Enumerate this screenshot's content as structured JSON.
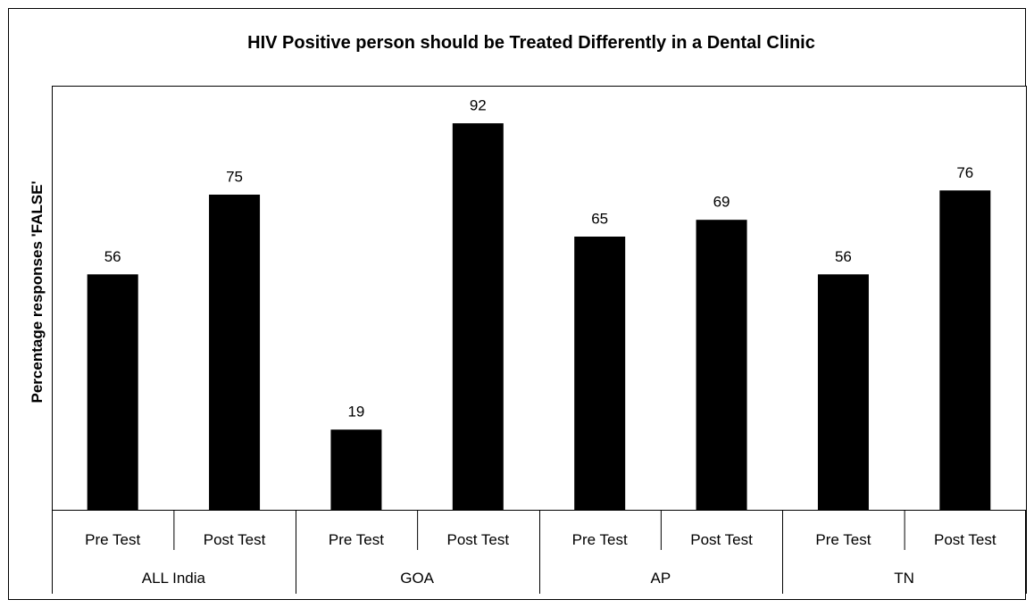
{
  "chart_data": {
    "type": "bar",
    "title": "HIV Positive person should be Treated Differently in a Dental Clinic",
    "ylabel": "Percentage responses 'FALSE'",
    "xlabel": "",
    "ylim": [
      0,
      100
    ],
    "grid": false,
    "legend": "none",
    "bar_color": "#000000",
    "groups": [
      {
        "name": "ALL India",
        "categories": [
          "Pre Test",
          "Post Test"
        ],
        "values": [
          56,
          75
        ]
      },
      {
        "name": "GOA",
        "categories": [
          "Pre Test",
          "Post Test"
        ],
        "values": [
          19,
          92
        ]
      },
      {
        "name": "AP",
        "categories": [
          "Pre Test",
          "Post Test"
        ],
        "values": [
          65,
          69
        ]
      },
      {
        "name": "TN",
        "categories": [
          "Pre Test",
          "Post Test"
        ],
        "values": [
          56,
          76
        ]
      }
    ]
  }
}
